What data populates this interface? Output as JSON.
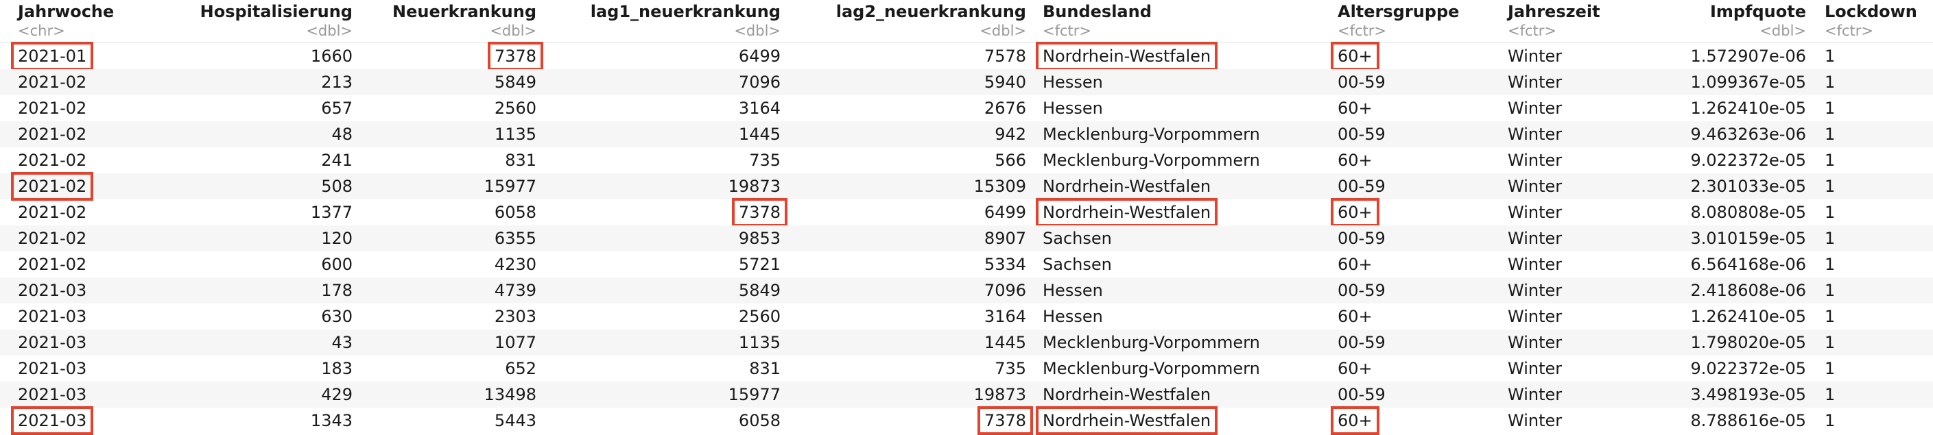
{
  "columns": [
    {
      "name": "Jahrwoche",
      "type": "<chr>"
    },
    {
      "name": "Hospitalisierung",
      "type": "<dbl>"
    },
    {
      "name": "Neuerkrankung",
      "type": "<dbl>"
    },
    {
      "name": "lag1_neuerkrankung",
      "type": "<dbl>"
    },
    {
      "name": "lag2_neuerkrankung",
      "type": "<dbl>"
    },
    {
      "name": "Bundesland",
      "type": "<fctr>"
    },
    {
      "name": "Altersgruppe",
      "type": "<fctr>"
    },
    {
      "name": "Jahreszeit",
      "type": "<fctr>"
    },
    {
      "name": "Impfquote",
      "type": "<dbl>"
    },
    {
      "name": "Lockdown",
      "type": "<fctr>"
    }
  ],
  "rows": [
    [
      "2021-01",
      "1660",
      "7378",
      "6499",
      "7578",
      "Nordrhein-Westfalen",
      "60+",
      "Winter",
      "1.572907e-06",
      "1"
    ],
    [
      "2021-02",
      "213",
      "5849",
      "7096",
      "5940",
      "Hessen",
      "00-59",
      "Winter",
      "1.099367e-05",
      "1"
    ],
    [
      "2021-02",
      "657",
      "2560",
      "3164",
      "2676",
      "Hessen",
      "60+",
      "Winter",
      "1.262410e-05",
      "1"
    ],
    [
      "2021-02",
      "48",
      "1135",
      "1445",
      "942",
      "Mecklenburg-Vorpommern",
      "00-59",
      "Winter",
      "9.463263e-06",
      "1"
    ],
    [
      "2021-02",
      "241",
      "831",
      "735",
      "566",
      "Mecklenburg-Vorpommern",
      "60+",
      "Winter",
      "9.022372e-05",
      "1"
    ],
    [
      "2021-02",
      "508",
      "15977",
      "19873",
      "15309",
      "Nordrhein-Westfalen",
      "00-59",
      "Winter",
      "2.301033e-05",
      "1"
    ],
    [
      "2021-02",
      "1377",
      "6058",
      "7378",
      "6499",
      "Nordrhein-Westfalen",
      "60+",
      "Winter",
      "8.080808e-05",
      "1"
    ],
    [
      "2021-02",
      "120",
      "6355",
      "9853",
      "8907",
      "Sachsen",
      "00-59",
      "Winter",
      "3.010159e-05",
      "1"
    ],
    [
      "2021-02",
      "600",
      "4230",
      "5721",
      "5334",
      "Sachsen",
      "60+",
      "Winter",
      "6.564168e-06",
      "1"
    ],
    [
      "2021-03",
      "178",
      "4739",
      "5849",
      "7096",
      "Hessen",
      "00-59",
      "Winter",
      "2.418608e-06",
      "1"
    ],
    [
      "2021-03",
      "630",
      "2303",
      "2560",
      "3164",
      "Hessen",
      "60+",
      "Winter",
      "1.262410e-05",
      "1"
    ],
    [
      "2021-03",
      "43",
      "1077",
      "1135",
      "1445",
      "Mecklenburg-Vorpommern",
      "00-59",
      "Winter",
      "1.798020e-05",
      "1"
    ],
    [
      "2021-03",
      "183",
      "652",
      "831",
      "735",
      "Mecklenburg-Vorpommern",
      "60+",
      "Winter",
      "9.022372e-05",
      "1"
    ],
    [
      "2021-03",
      "429",
      "13498",
      "15977",
      "19873",
      "Nordrhein-Westfalen",
      "00-59",
      "Winter",
      "3.498193e-05",
      "1"
    ],
    [
      "2021-03",
      "1343",
      "5443",
      "6058",
      "7378",
      "Nordrhein-Westfalen",
      "60+",
      "Winter",
      "8.788616e-05",
      "1"
    ]
  ],
  "highlight_color": "#e2432f",
  "highlighted_cells": [
    {
      "row": 0,
      "col": 0
    },
    {
      "row": 0,
      "col": 2
    },
    {
      "row": 0,
      "col": 5
    },
    {
      "row": 0,
      "col": 6
    },
    {
      "row": 5,
      "col": 0
    },
    {
      "row": 6,
      "col": 3
    },
    {
      "row": 6,
      "col": 5
    },
    {
      "row": 6,
      "col": 6
    },
    {
      "row": 14,
      "col": 0
    },
    {
      "row": 14,
      "col": 4
    },
    {
      "row": 14,
      "col": 5
    },
    {
      "row": 14,
      "col": 6
    }
  ]
}
